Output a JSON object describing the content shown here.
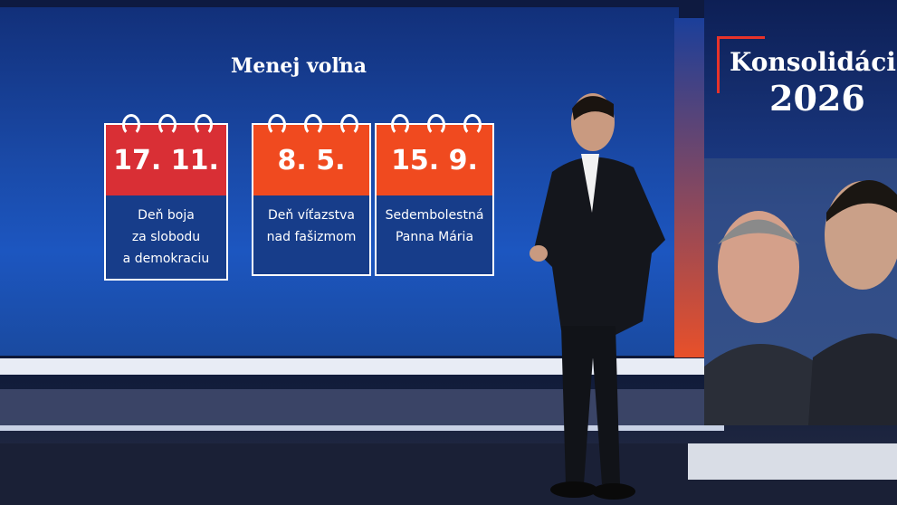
{
  "screen": {
    "title": "Menej voľna",
    "cards": [
      {
        "date": "17. 11.",
        "lines": [
          "Deň boja",
          "za slobodu",
          "a demokraciu"
        ]
      },
      {
        "date": "8. 5.",
        "lines": [
          "Deň víťazstva",
          "nad fašizmom"
        ]
      },
      {
        "date": "15. 9.",
        "lines": [
          "Sedembolestná",
          "Panna Mária"
        ]
      }
    ]
  },
  "side_panel": {
    "title": "Konsolidácia",
    "year": "2026"
  }
}
